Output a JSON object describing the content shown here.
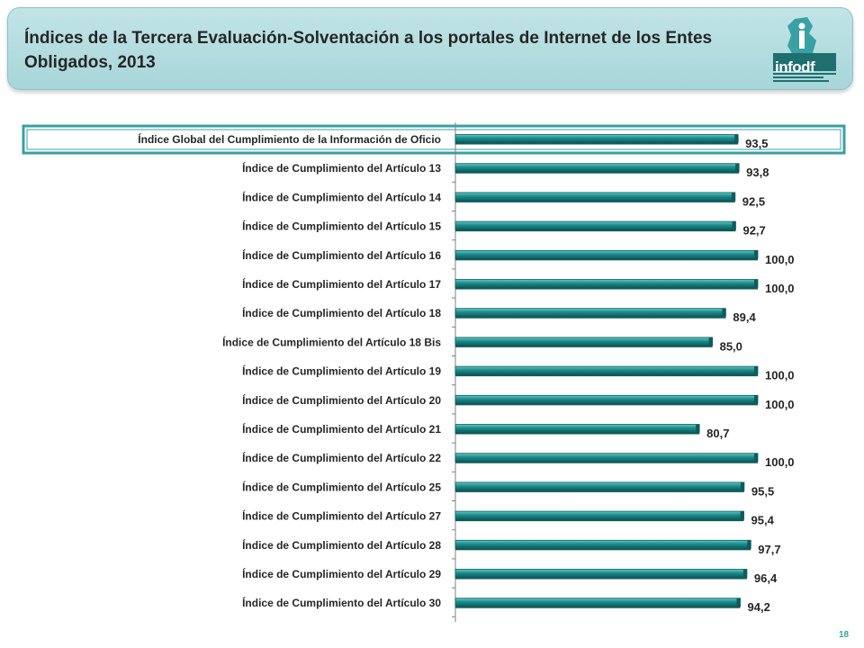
{
  "header": {
    "title": "Índices de la Tercera Evaluación-Solventación a los portales de Internet de los Entes Obligados, 2013",
    "logo_text": "infodf"
  },
  "colors": {
    "bar": "#1d8c8c",
    "bar_highlight": "#63c8c8",
    "bar_shadow": "#0e5c5c",
    "header_bg": "#b3dcdf",
    "highlight_border": "#3aa0a3"
  },
  "highlighted_category_index": 0,
  "chart_data": {
    "type": "bar",
    "orientation": "horizontal",
    "title": "",
    "xlabel": "",
    "ylabel": "",
    "xlim": [
      0,
      100
    ],
    "grid": false,
    "categories": [
      "Índice Global del Cumplimiento de la Información de Oficio",
      "Índice de Cumplimiento del Artículo 13",
      "Índice de Cumplimiento del Artículo 14",
      "Índice de Cumplimiento del Artículo 15",
      "Índice de Cumplimiento del Artículo 16",
      "Índice de Cumplimiento del Artículo 17",
      "Índice de Cumplimiento del Artículo 18",
      "Índice de Cumplimiento del Artículo 18 Bis",
      "Índice de Cumplimiento del Artículo 19",
      "Índice de Cumplimiento del Artículo 20",
      "Índice de Cumplimiento del Artículo 21",
      "Índice de Cumplimiento del Artículo 22",
      "Índice de Cumplimiento del Artículo 25",
      "Índice de Cumplimiento del Artículo 27",
      "Índice de Cumplimiento del Artículo 28",
      "Índice de Cumplimiento del Artículo 29",
      "Índice de Cumplimiento del Artículo 30"
    ],
    "values": [
      93.5,
      93.8,
      92.5,
      92.7,
      100.0,
      100.0,
      89.4,
      85.0,
      100.0,
      100.0,
      80.7,
      100.0,
      95.5,
      95.4,
      97.7,
      96.4,
      94.2
    ],
    "value_labels": [
      "93,5",
      "93,8",
      "92,5",
      "92,7",
      "100,0",
      "100,0",
      "89,4",
      "85,0",
      "100,0",
      "100,0",
      "80,7",
      "100,0",
      "95,5",
      "95,4",
      "97,7",
      "96,4",
      "94,2"
    ]
  },
  "footer": {
    "page_number": "18"
  }
}
